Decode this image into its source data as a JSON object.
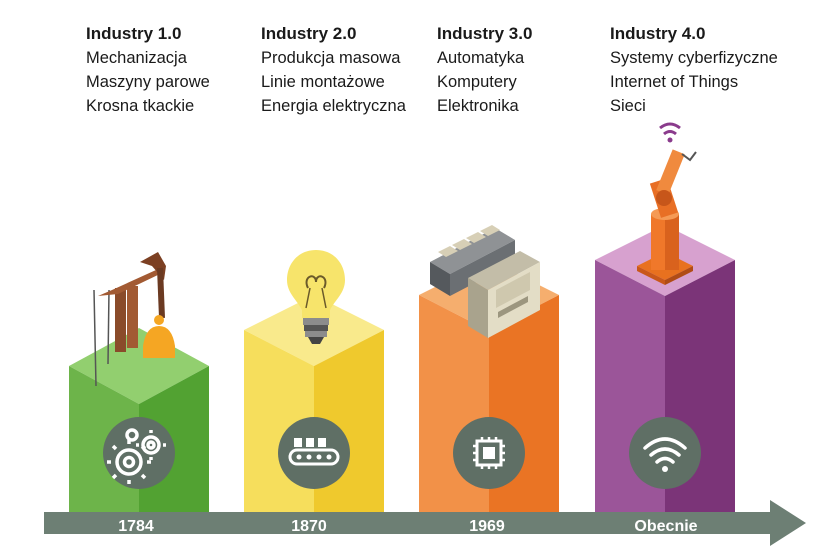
{
  "eras": [
    {
      "title": "Industry 1.0",
      "items": [
        "Mechanizacja",
        "Maszyny parowe",
        "Krosna tkackie"
      ],
      "year": "1784",
      "icon": "gears-icon",
      "color": "#5aaa3c"
    },
    {
      "title": "Industry 2.0",
      "items": [
        "Produkcja masowa",
        "Linie montażowe",
        "Energia elektryczna"
      ],
      "year": "1870",
      "icon": "conveyor-belt-icon",
      "color": "#f2d94a"
    },
    {
      "title": "Industry 3.0",
      "items": [
        "Automatyka",
        "Komputery",
        "Elektronika"
      ],
      "year": "1969",
      "icon": "chip-icon",
      "color": "#ee7d2a"
    },
    {
      "title": "Industry 4.0",
      "items": [
        "Systemy cyberfizyczne",
        "Internet of Things",
        "Sieci"
      ],
      "year": "Obecnie",
      "icon": "wifi-icon",
      "color": "#8a3b8c"
    }
  ],
  "illustrations": [
    "oil-pump-illustration",
    "light-bulb-illustration",
    "computer-illustration",
    "robot-arm-illustration"
  ],
  "timeline": {
    "arrow_color": "#6d7f74"
  }
}
